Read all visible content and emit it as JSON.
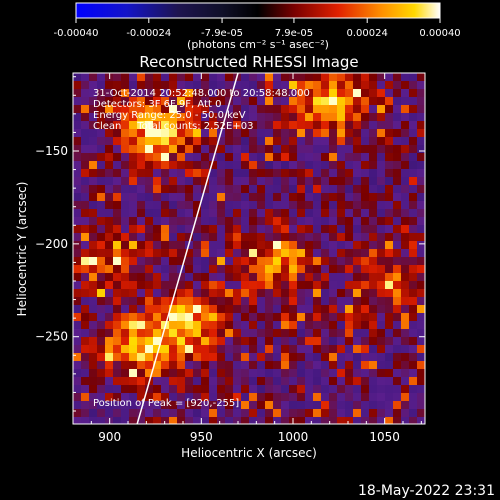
{
  "colorbar": {
    "tick_labels": [
      "-0.00040",
      "-0.00024",
      "-7.9e-05",
      "7.9e-05",
      "0.00024",
      "0.00040"
    ],
    "tick_values": [
      -0.0004,
      -0.00024,
      -7.9e-05,
      7.9e-05,
      0.00024,
      0.0004
    ],
    "units": "(photons cm⁻² s⁻¹ asec⁻²)",
    "min": -0.0004,
    "max": 0.0004
  },
  "chart_data": {
    "type": "heatmap",
    "title": "Reconstructed RHESSI Image",
    "xlabel": "Heliocentric X (arcsec)",
    "ylabel": "Heliocentric Y (arcsec)",
    "xlim": [
      880,
      1072
    ],
    "ylim": [
      -297,
      -108
    ],
    "x_ticks": [
      900,
      950,
      1000,
      1050
    ],
    "y_ticks": [
      -150,
      -200,
      -250
    ],
    "annotations": [
      "31-Oct-2014 20:52:48.000 to 20:58:48.000",
      "Detectors: 3F 6F 9F, Att 0",
      "Energy Range: 25.0 - 50.0 keV",
      "Clean     Total counts: 2.52E+03"
    ],
    "peak_label": "Position of Peak = [920,-255]",
    "peak": [
      920,
      -255
    ],
    "limb_line": [
      [
        915,
        -297
      ],
      [
        970,
        -108
      ]
    ],
    "bright_regions": [
      {
        "x": 925,
        "y": -140,
        "level": 0.95
      },
      {
        "x": 1020,
        "y": -125,
        "level": 0.85
      },
      {
        "x": 940,
        "y": -245,
        "level": 1.0
      },
      {
        "x": 920,
        "y": -255,
        "level": 1.0
      },
      {
        "x": 990,
        "y": -210,
        "level": 0.75
      },
      {
        "x": 1050,
        "y": -220,
        "level": 0.6
      },
      {
        "x": 900,
        "y": -210,
        "level": 0.55
      }
    ]
  },
  "footer": {
    "date": "18-May-2022 23:31"
  }
}
